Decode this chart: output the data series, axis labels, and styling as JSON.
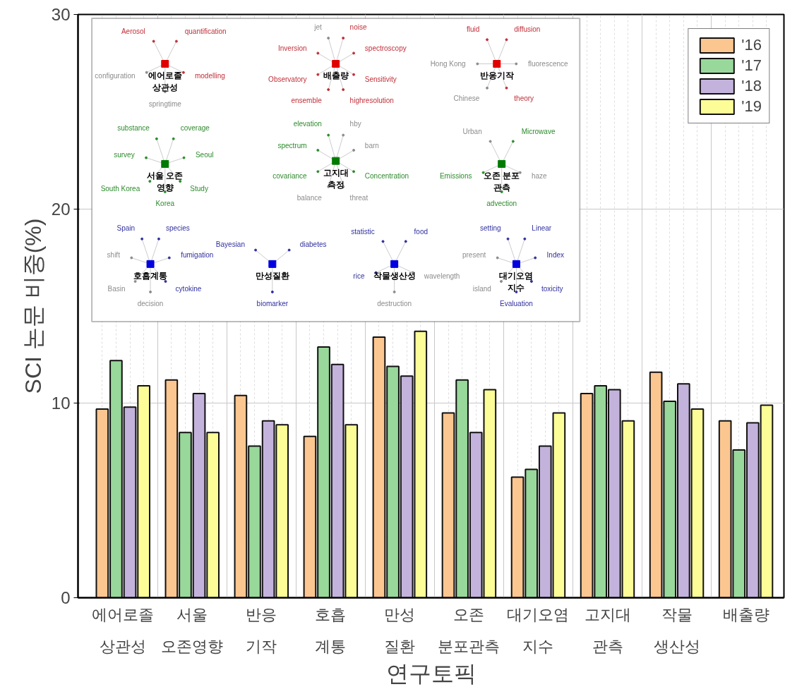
{
  "chart_data": [
    {
      "type": "bar",
      "xlabel": "연구토픽",
      "ylabel": "SCI 논문 비중(%)",
      "categories": [
        "에어로졸\n상관성",
        "서울\n오존영향",
        "반응\n기작",
        "호흡\n계통",
        "만성\n질환",
        "오존\n분포관측",
        "대기오염\n지수",
        "고지대\n관측",
        "작물\n생산성",
        "배출량"
      ],
      "series": [
        {
          "name": "'16",
          "color": "#fcc690",
          "values": [
            9.7,
            11.2,
            10.4,
            8.3,
            13.4,
            9.5,
            6.2,
            10.5,
            11.6,
            9.1
          ]
        },
        {
          "name": "'17",
          "color": "#98d89a",
          "values": [
            12.2,
            8.5,
            7.8,
            12.9,
            11.9,
            11.2,
            6.6,
            10.9,
            10.1,
            7.6
          ]
        },
        {
          "name": "'18",
          "color": "#c3b3dc",
          "values": [
            9.8,
            10.5,
            9.1,
            12.0,
            11.4,
            8.5,
            7.8,
            10.7,
            11.0,
            9.0
          ]
        },
        {
          "name": "'19",
          "color": "#fdfd98",
          "values": [
            10.9,
            8.5,
            8.9,
            8.9,
            13.7,
            10.7,
            9.5,
            9.1,
            9.7,
            9.9
          ]
        }
      ],
      "ylim": [
        0,
        30
      ],
      "yticks": [
        0,
        10,
        20,
        30
      ],
      "grid": true,
      "legend": "top right"
    },
    {
      "type": "other",
      "title": "에어로졸\n상관성",
      "color": "#e00000",
      "annotations": [
        "quantification",
        "modelling",
        "springtime",
        "configuration",
        "Aerosol"
      ],
      "colors": [
        "#c0303a",
        "#c0303a",
        "#8c8c8c",
        "#8c8c8c",
        "#c0303a"
      ]
    },
    {
      "type": "other",
      "title": "배출량",
      "color": "#e00000",
      "annotations": [
        "noise",
        "spectroscopy",
        "Sensitivity",
        "highresolution",
        "ensemble",
        "Observatory",
        "Inversion",
        "jet"
      ],
      "colors": [
        "#c0303a",
        "#c0303a",
        "#c0303a",
        "#c0303a",
        "#c0303a",
        "#c0303a",
        "#c0303a",
        "#8c8c8c"
      ]
    },
    {
      "type": "other",
      "title": "반응기작",
      "color": "#e00000",
      "annotations": [
        "diffusion",
        "fluorescence",
        "theory",
        "Chinese",
        "Hong Kong",
        "fluid"
      ],
      "colors": [
        "#c0303a",
        "#8c8c8c",
        "#c0303a",
        "#8c8c8c",
        "#8c8c8c",
        "#c0303a"
      ]
    },
    {
      "type": "other",
      "title": "서울 오존\n영향",
      "color": "#007a00",
      "annotations": [
        "coverage",
        "Seoul",
        "Study",
        "Korea",
        "South Korea",
        "survey",
        "substance"
      ],
      "colors": [
        "#2e8b2e",
        "#2e8b2e",
        "#2e8b2e",
        "#2e8b2e",
        "#2e8b2e",
        "#2e8b2e",
        "#2e8b2e"
      ]
    },
    {
      "type": "other",
      "title": "고지대\n측정",
      "color": "#007a00",
      "annotations": [
        "hby",
        "barn",
        "Concentration",
        "threat",
        "balance",
        "covariance",
        "spectrum",
        "elevation"
      ],
      "colors": [
        "#8c8c8c",
        "#8c8c8c",
        "#2e8b2e",
        "#8c8c8c",
        "#8c8c8c",
        "#2e8b2e",
        "#2e8b2e",
        "#2e8b2e"
      ]
    },
    {
      "type": "other",
      "title": "오존 분포\n관측",
      "color": "#007a00",
      "annotations": [
        "Microwave",
        "haze",
        "advection",
        "Emissions",
        "Urban"
      ],
      "colors": [
        "#2e8b2e",
        "#8c8c8c",
        "#2e8b2e",
        "#2e8b2e",
        "#8c8c8c"
      ]
    },
    {
      "type": "other",
      "title": "호흡계통",
      "color": "#0000e0",
      "annotations": [
        "species",
        "fumigation",
        "cytokine",
        "decision",
        "Basin",
        "shift",
        "Spain"
      ],
      "colors": [
        "#3030a0",
        "#3030a0",
        "#3030a0",
        "#8c8c8c",
        "#8c8c8c",
        "#8c8c8c",
        "#3030a0"
      ]
    },
    {
      "type": "other",
      "title": "만성질환",
      "color": "#0000e0",
      "annotations": [
        "diabetes",
        "biomarker",
        "Bayesian"
      ],
      "colors": [
        "#3030a0",
        "#3030a0",
        "#3030a0"
      ]
    },
    {
      "type": "other",
      "title": "작물생산성",
      "color": "#0000e0",
      "annotations": [
        "food",
        "wavelength",
        "destruction",
        "rice",
        "statistic"
      ],
      "colors": [
        "#3030a0",
        "#8c8c8c",
        "#8c8c8c",
        "#3030a0",
        "#3030a0"
      ]
    },
    {
      "type": "other",
      "title": "대기오염\n지수",
      "color": "#0000e0",
      "annotations": [
        "Linear",
        "Index",
        "toxicity",
        "Evaluation",
        "island",
        "present",
        "setting"
      ],
      "colors": [
        "#3030a0",
        "#3030a0",
        "#3030a0",
        "#3030a0",
        "#8c8c8c",
        "#8c8c8c",
        "#3030a0"
      ]
    }
  ]
}
